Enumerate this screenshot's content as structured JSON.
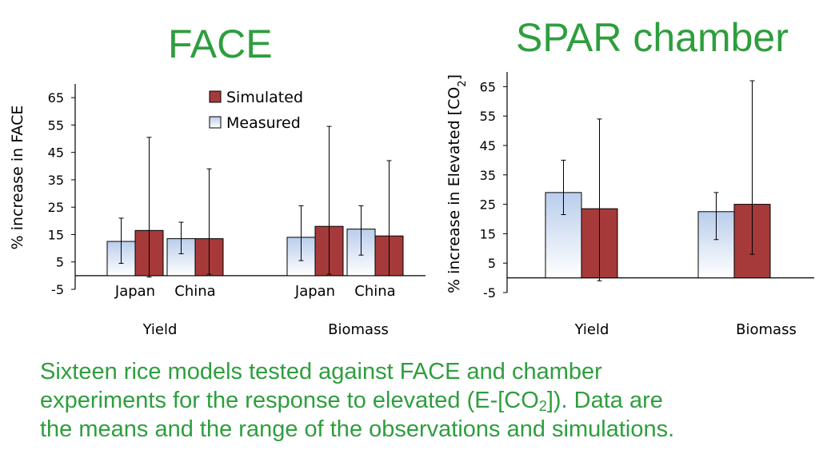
{
  "chart_data": [
    {
      "type": "bar",
      "title": "FACE",
      "ylabel": "% increase in FACE",
      "ylim": [
        -5,
        70
      ],
      "yticks": [
        65,
        55,
        45,
        35,
        25,
        15,
        5,
        -5
      ],
      "groups": [
        {
          "label": "Yield",
          "subcategories": [
            "Japan",
            "China"
          ]
        },
        {
          "label": "Biomass",
          "subcategories": [
            "Japan",
            "China"
          ]
        }
      ],
      "series": [
        {
          "name": "Measured",
          "color": "#c9d9f0",
          "values": [
            12.5,
            13.5,
            14,
            17
          ],
          "err_low": [
            4.5,
            8,
            5.5,
            7.5
          ],
          "err_high": [
            21,
            19.5,
            25.5,
            25.5
          ]
        },
        {
          "name": "Simulated",
          "color": "#a63a3a",
          "values": [
            16.5,
            13.5,
            18,
            14.5
          ],
          "err_low": [
            -0.5,
            0.5,
            0.5,
            0
          ],
          "err_high": [
            50.5,
            39,
            54.5,
            42
          ]
        }
      ],
      "legend": {
        "position": "top-center",
        "entries": [
          "Simulated",
          "Measured"
        ]
      },
      "grid": false
    },
    {
      "type": "bar",
      "title": "SPAR chamber",
      "ylabel_main": "% increase in Elevated [CO",
      "ylabel_sub": "2",
      "ylabel_end": "]",
      "ylim": [
        -5,
        70
      ],
      "yticks": [
        65,
        55,
        45,
        35,
        25,
        15,
        5,
        -5
      ],
      "categories": [
        "Yield",
        "Biomass"
      ],
      "series": [
        {
          "name": "Measured",
          "color": "#c9d9f0",
          "values": [
            29,
            22.5
          ],
          "err_low": [
            21.5,
            13
          ],
          "err_high": [
            40,
            29
          ]
        },
        {
          "name": "Simulated",
          "color": "#a63a3a",
          "values": [
            23.5,
            25
          ],
          "err_low": [
            -1,
            8
          ],
          "err_high": [
            54,
            67
          ]
        }
      ],
      "grid": false
    }
  ],
  "caption": {
    "line1": "Sixteen rice models tested against FACE and chamber",
    "line2_part1": "experiments for the response to elevated (E-[CO",
    "line2_sub": "2",
    "line2_part2": "]). Data are",
    "line3": "the means and the range of the observations and simulations."
  }
}
